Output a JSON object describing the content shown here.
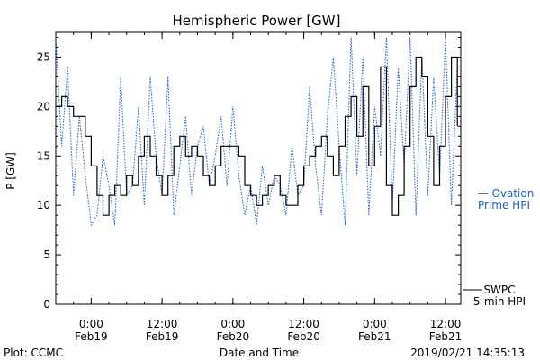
{
  "chart_data": {
    "type": "line",
    "title": "Hemispheric Power [GW]",
    "xlabel": "Date and Time",
    "ylabel": "P [GW]",
    "ylim": [
      0,
      27.5
    ],
    "xlim": [
      "2019-02-18 18:00",
      "2019-02-21 14:35"
    ],
    "y_ticks": [
      0,
      5,
      10,
      15,
      20,
      25
    ],
    "x_ticks": [
      {
        "time": "2019-02-19 00:00",
        "line1": "0:00",
        "line2": "Feb19"
      },
      {
        "time": "2019-02-19 12:00",
        "line1": "12:00",
        "line2": "Feb19"
      },
      {
        "time": "2019-02-20 00:00",
        "line1": "0:00",
        "line2": "Feb20"
      },
      {
        "time": "2019-02-20 12:00",
        "line1": "12:00",
        "line2": "Feb20"
      },
      {
        "time": "2019-02-21 00:00",
        "line1": "0:00",
        "line2": "Feb21"
      },
      {
        "time": "2019-02-21 12:00",
        "line1": "12:00",
        "line2": "Feb21"
      }
    ],
    "grid": false,
    "legend_placement": "right",
    "series": [
      {
        "name": "Ovation Prime HPI",
        "color": "#1f5fbf",
        "style": "dotted",
        "x": [
          "2019-02-18 18:00",
          "2019-02-18 19:00",
          "2019-02-18 20:00",
          "2019-02-18 21:00",
          "2019-02-18 22:00",
          "2019-02-18 23:00",
          "2019-02-19 00:00",
          "2019-02-19 01:00",
          "2019-02-19 02:00",
          "2019-02-19 03:00",
          "2019-02-19 04:00",
          "2019-02-19 05:00",
          "2019-02-19 06:00",
          "2019-02-19 07:00",
          "2019-02-19 08:00",
          "2019-02-19 09:00",
          "2019-02-19 10:00",
          "2019-02-19 11:00",
          "2019-02-19 12:00",
          "2019-02-19 13:00",
          "2019-02-19 14:00",
          "2019-02-19 15:00",
          "2019-02-19 16:00",
          "2019-02-19 17:00",
          "2019-02-19 18:00",
          "2019-02-19 19:00",
          "2019-02-19 20:00",
          "2019-02-19 21:00",
          "2019-02-19 22:00",
          "2019-02-19 23:00",
          "2019-02-20 00:00",
          "2019-02-20 01:00",
          "2019-02-20 02:00",
          "2019-02-20 03:00",
          "2019-02-20 04:00",
          "2019-02-20 05:00",
          "2019-02-20 06:00",
          "2019-02-20 07:00",
          "2019-02-20 08:00",
          "2019-02-20 09:00",
          "2019-02-20 10:00",
          "2019-02-20 11:00",
          "2019-02-20 12:00",
          "2019-02-20 13:00",
          "2019-02-20 14:00",
          "2019-02-20 15:00",
          "2019-02-20 16:00",
          "2019-02-20 17:00",
          "2019-02-20 18:00",
          "2019-02-20 19:00",
          "2019-02-20 20:00",
          "2019-02-20 21:00",
          "2019-02-20 22:00",
          "2019-02-20 23:00",
          "2019-02-21 00:00",
          "2019-02-21 01:00",
          "2019-02-21 02:00",
          "2019-02-21 03:00",
          "2019-02-21 04:00",
          "2019-02-21 05:00",
          "2019-02-21 06:00",
          "2019-02-21 07:00",
          "2019-02-21 08:00",
          "2019-02-21 09:00",
          "2019-02-21 10:00",
          "2019-02-21 11:00",
          "2019-02-21 12:00",
          "2019-02-21 13:00",
          "2019-02-21 14:00"
        ],
        "y": [
          27,
          16,
          24,
          11,
          19,
          13,
          8,
          9,
          15,
          12,
          8,
          23,
          11,
          12,
          20,
          10,
          23,
          15,
          11,
          23,
          9,
          14,
          19,
          11,
          16,
          18,
          12,
          15,
          19,
          12,
          20,
          13,
          9,
          12,
          8,
          14,
          10,
          13,
          12,
          9,
          16,
          11,
          12,
          22,
          14,
          9,
          19,
          25,
          16,
          8,
          27,
          13,
          25,
          9,
          20,
          15,
          27,
          10,
          24,
          14,
          27,
          9,
          25,
          11,
          23,
          13,
          27,
          10,
          24
        ]
      },
      {
        "name": "SWPC 5-min HPI",
        "color": "#000000",
        "style": "solid",
        "x": [
          "2019-02-18 18:00",
          "2019-02-18 19:00",
          "2019-02-18 20:00",
          "2019-02-18 21:00",
          "2019-02-18 22:00",
          "2019-02-18 23:00",
          "2019-02-19 00:00",
          "2019-02-19 01:00",
          "2019-02-19 02:00",
          "2019-02-19 03:00",
          "2019-02-19 04:00",
          "2019-02-19 05:00",
          "2019-02-19 06:00",
          "2019-02-19 07:00",
          "2019-02-19 08:00",
          "2019-02-19 09:00",
          "2019-02-19 10:00",
          "2019-02-19 11:00",
          "2019-02-19 12:00",
          "2019-02-19 13:00",
          "2019-02-19 14:00",
          "2019-02-19 15:00",
          "2019-02-19 16:00",
          "2019-02-19 17:00",
          "2019-02-19 18:00",
          "2019-02-19 19:00",
          "2019-02-19 20:00",
          "2019-02-19 21:00",
          "2019-02-19 22:00",
          "2019-02-19 23:00",
          "2019-02-20 00:00",
          "2019-02-20 01:00",
          "2019-02-20 02:00",
          "2019-02-20 03:00",
          "2019-02-20 04:00",
          "2019-02-20 05:00",
          "2019-02-20 06:00",
          "2019-02-20 07:00",
          "2019-02-20 08:00",
          "2019-02-20 09:00",
          "2019-02-20 10:00",
          "2019-02-20 11:00",
          "2019-02-20 12:00",
          "2019-02-20 13:00",
          "2019-02-20 14:00",
          "2019-02-20 15:00",
          "2019-02-20 16:00",
          "2019-02-20 17:00",
          "2019-02-20 18:00",
          "2019-02-20 19:00",
          "2019-02-20 20:00",
          "2019-02-20 21:00",
          "2019-02-20 22:00",
          "2019-02-20 23:00",
          "2019-02-21 00:00",
          "2019-02-21 01:00",
          "2019-02-21 02:00",
          "2019-02-21 03:00",
          "2019-02-21 04:00",
          "2019-02-21 05:00",
          "2019-02-21 06:00",
          "2019-02-21 07:00",
          "2019-02-21 08:00",
          "2019-02-21 09:00",
          "2019-02-21 10:00",
          "2019-02-21 11:00",
          "2019-02-21 12:00",
          "2019-02-21 13:00",
          "2019-02-21 14:00"
        ],
        "y": [
          20,
          21,
          20,
          19,
          19,
          17,
          14,
          11,
          9,
          11,
          12,
          11,
          13,
          12,
          15,
          17,
          15,
          13,
          11,
          13,
          16,
          17,
          15,
          16,
          15,
          13,
          12,
          14,
          16,
          16,
          16,
          15,
          12,
          11,
          10,
          11,
          12,
          13,
          11,
          10,
          10,
          12,
          14,
          15,
          16,
          17,
          15,
          13,
          16,
          19,
          21,
          17,
          22,
          14,
          18,
          24,
          12,
          9,
          11,
          16,
          22,
          25,
          23,
          17,
          12,
          16,
          21,
          25,
          18
        ]
      }
    ],
    "legend": [
      {
        "line1": "— Ovation",
        "line2": "Prime HPI",
        "color": "#1f5fbf"
      },
      {
        "line1": "SWPC",
        "line2": "5-min HPI",
        "color": "#000000"
      }
    ]
  },
  "footer": {
    "plot_credit": "Plot: CCMC",
    "axis_title": "Date and Time",
    "timestamp": "2019/02/21 14:35:13"
  }
}
